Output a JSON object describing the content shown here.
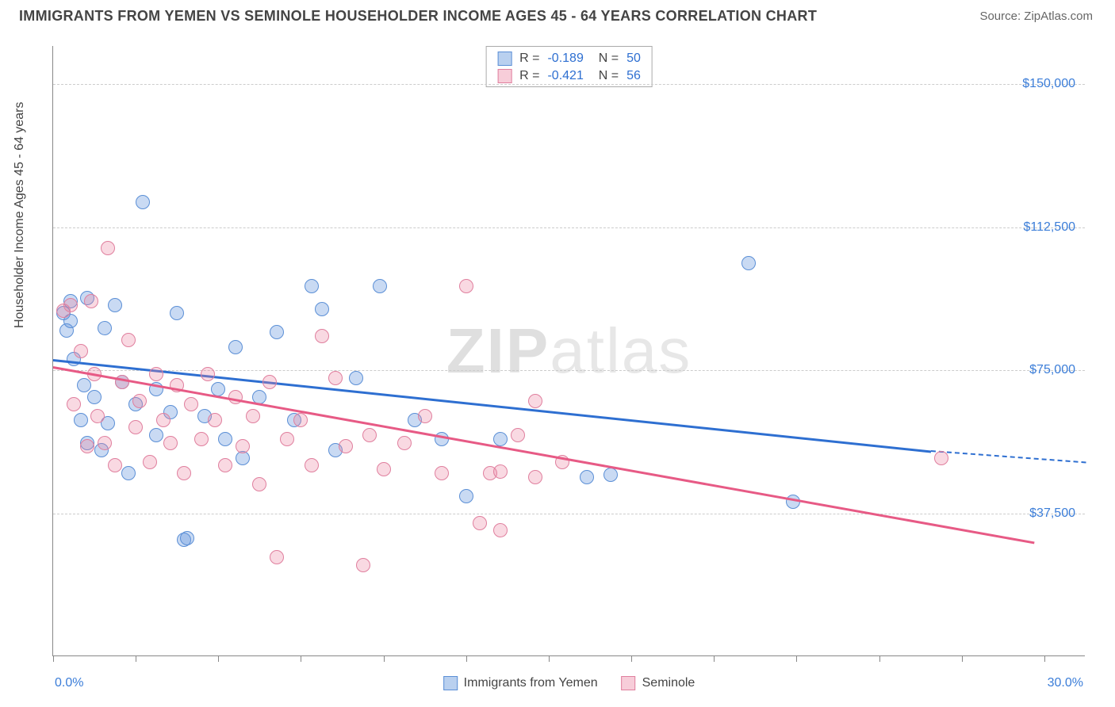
{
  "title": "IMMIGRANTS FROM YEMEN VS SEMINOLE HOUSEHOLDER INCOME AGES 45 - 64 YEARS CORRELATION CHART",
  "source": "Source: ZipAtlas.com",
  "watermark_a": "ZIP",
  "watermark_b": "atlas",
  "y_axis_label": "Householder Income Ages 45 - 64 years",
  "chart": {
    "type": "scatter",
    "xlim": [
      0,
      30
    ],
    "ylim": [
      0,
      160000
    ],
    "x_ticks_pct": [
      0,
      8,
      16,
      24,
      32,
      40,
      48,
      56,
      64,
      72,
      80,
      88,
      96
    ],
    "x_tick_labels": {
      "left": "0.0%",
      "right": "30.0%"
    },
    "y_grid": [
      {
        "value": 37500,
        "label": "$37,500"
      },
      {
        "value": 75000,
        "label": "$75,000"
      },
      {
        "value": 112500,
        "label": "$112,500"
      },
      {
        "value": 150000,
        "label": "$150,000"
      }
    ],
    "series": [
      {
        "key": "a",
        "name": "Immigrants from Yemen",
        "color_fill": "rgba(100,150,220,0.35)",
        "color_stroke": "#5b8fd6",
        "legend": {
          "R": "-0.189",
          "N": "50"
        },
        "trend": {
          "x1": 0,
          "y1": 78000,
          "x2": 25.5,
          "y2": 54000,
          "dash_to_x": 30,
          "dash_to_y": 51000
        },
        "points": [
          [
            0.3,
            90000
          ],
          [
            0.4,
            85500
          ],
          [
            0.5,
            93000
          ],
          [
            0.5,
            88000
          ],
          [
            0.6,
            78000
          ],
          [
            0.8,
            62000
          ],
          [
            0.9,
            71000
          ],
          [
            1.0,
            94000
          ],
          [
            1.0,
            56000
          ],
          [
            1.2,
            68000
          ],
          [
            1.4,
            54000
          ],
          [
            1.5,
            86000
          ],
          [
            1.6,
            61000
          ],
          [
            1.8,
            92000
          ],
          [
            2.0,
            72000
          ],
          [
            2.2,
            48000
          ],
          [
            2.4,
            66000
          ],
          [
            2.6,
            119000
          ],
          [
            3.0,
            58000
          ],
          [
            3.0,
            70000
          ],
          [
            3.4,
            64000
          ],
          [
            3.6,
            90000
          ],
          [
            3.8,
            30500
          ],
          [
            3.9,
            31000
          ],
          [
            4.4,
            63000
          ],
          [
            4.8,
            70000
          ],
          [
            5.0,
            57000
          ],
          [
            5.3,
            81000
          ],
          [
            5.5,
            52000
          ],
          [
            6.0,
            68000
          ],
          [
            6.5,
            85000
          ],
          [
            7.0,
            62000
          ],
          [
            7.5,
            97000
          ],
          [
            7.8,
            91000
          ],
          [
            8.2,
            54000
          ],
          [
            8.8,
            73000
          ],
          [
            9.5,
            97000
          ],
          [
            10.5,
            62000
          ],
          [
            11.3,
            57000
          ],
          [
            12.0,
            42000
          ],
          [
            13.0,
            57000
          ],
          [
            15.5,
            47000
          ],
          [
            16.2,
            47500
          ],
          [
            20.2,
            103000
          ],
          [
            21.5,
            40500
          ]
        ]
      },
      {
        "key": "b",
        "name": "Seminole",
        "color_fill": "rgba(235,130,160,0.30)",
        "color_stroke": "#e07f9e",
        "legend": {
          "R": "-0.421",
          "N": "56"
        },
        "trend": {
          "x1": 0,
          "y1": 76000,
          "x2": 28.5,
          "y2": 30000
        },
        "points": [
          [
            0.3,
            90500
          ],
          [
            0.5,
            92000
          ],
          [
            0.6,
            66000
          ],
          [
            0.8,
            80000
          ],
          [
            1.0,
            55000
          ],
          [
            1.1,
            93000
          ],
          [
            1.2,
            74000
          ],
          [
            1.3,
            63000
          ],
          [
            1.5,
            56000
          ],
          [
            1.6,
            107000
          ],
          [
            1.8,
            50000
          ],
          [
            2.0,
            72000
          ],
          [
            2.2,
            83000
          ],
          [
            2.4,
            60000
          ],
          [
            2.5,
            67000
          ],
          [
            2.8,
            51000
          ],
          [
            3.0,
            74000
          ],
          [
            3.2,
            62000
          ],
          [
            3.4,
            56000
          ],
          [
            3.6,
            71000
          ],
          [
            3.8,
            48000
          ],
          [
            4.0,
            66000
          ],
          [
            4.3,
            57000
          ],
          [
            4.5,
            74000
          ],
          [
            4.7,
            62000
          ],
          [
            5.0,
            50000
          ],
          [
            5.3,
            68000
          ],
          [
            5.5,
            55000
          ],
          [
            5.8,
            63000
          ],
          [
            6.0,
            45000
          ],
          [
            6.3,
            72000
          ],
          [
            6.5,
            26000
          ],
          [
            6.8,
            57000
          ],
          [
            7.2,
            62000
          ],
          [
            7.5,
            50000
          ],
          [
            7.8,
            84000
          ],
          [
            8.2,
            73000
          ],
          [
            8.5,
            55000
          ],
          [
            9.0,
            24000
          ],
          [
            9.2,
            58000
          ],
          [
            9.6,
            49000
          ],
          [
            10.2,
            56000
          ],
          [
            10.8,
            63000
          ],
          [
            11.3,
            48000
          ],
          [
            12.0,
            97000
          ],
          [
            12.4,
            35000
          ],
          [
            12.7,
            48000
          ],
          [
            13.0,
            33000
          ],
          [
            13.0,
            48500
          ],
          [
            13.5,
            58000
          ],
          [
            14.0,
            67000
          ],
          [
            14.0,
            47000
          ],
          [
            14.8,
            51000
          ],
          [
            25.8,
            52000
          ]
        ]
      }
    ]
  }
}
